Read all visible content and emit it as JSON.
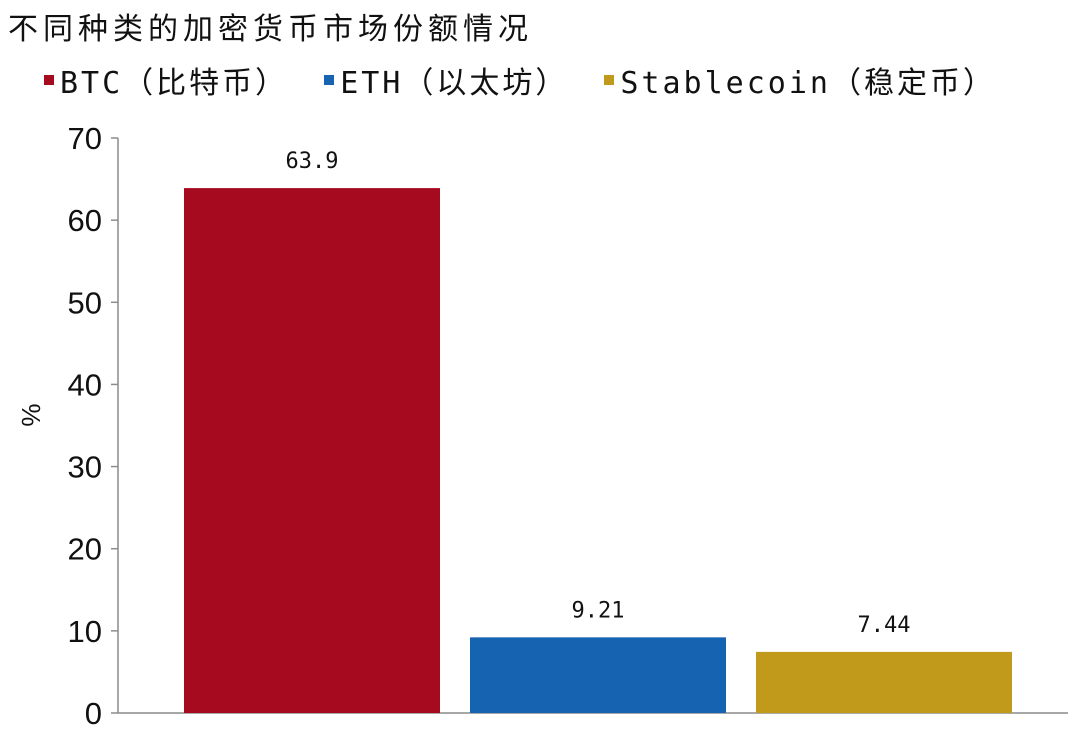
{
  "chart_data": {
    "type": "bar",
    "title": "不同种类的加密货币市场份额情况",
    "ylabel": "%",
    "ylim": [
      0,
      70
    ],
    "yticks": [
      0,
      10,
      20,
      30,
      40,
      50,
      60,
      70
    ],
    "grid": false,
    "legend_position": "top",
    "series": [
      {
        "name": "BTC（比特币）",
        "value": 63.9,
        "label": "63.9",
        "color": "#A50A1F"
      },
      {
        "name": "ETH（以太坊）",
        "value": 9.21,
        "label": "9.21",
        "color": "#1663B2"
      },
      {
        "name": "Stablecoin（稳定币）",
        "value": 7.44,
        "label": "7.44",
        "color": "#C29A1B"
      }
    ]
  }
}
